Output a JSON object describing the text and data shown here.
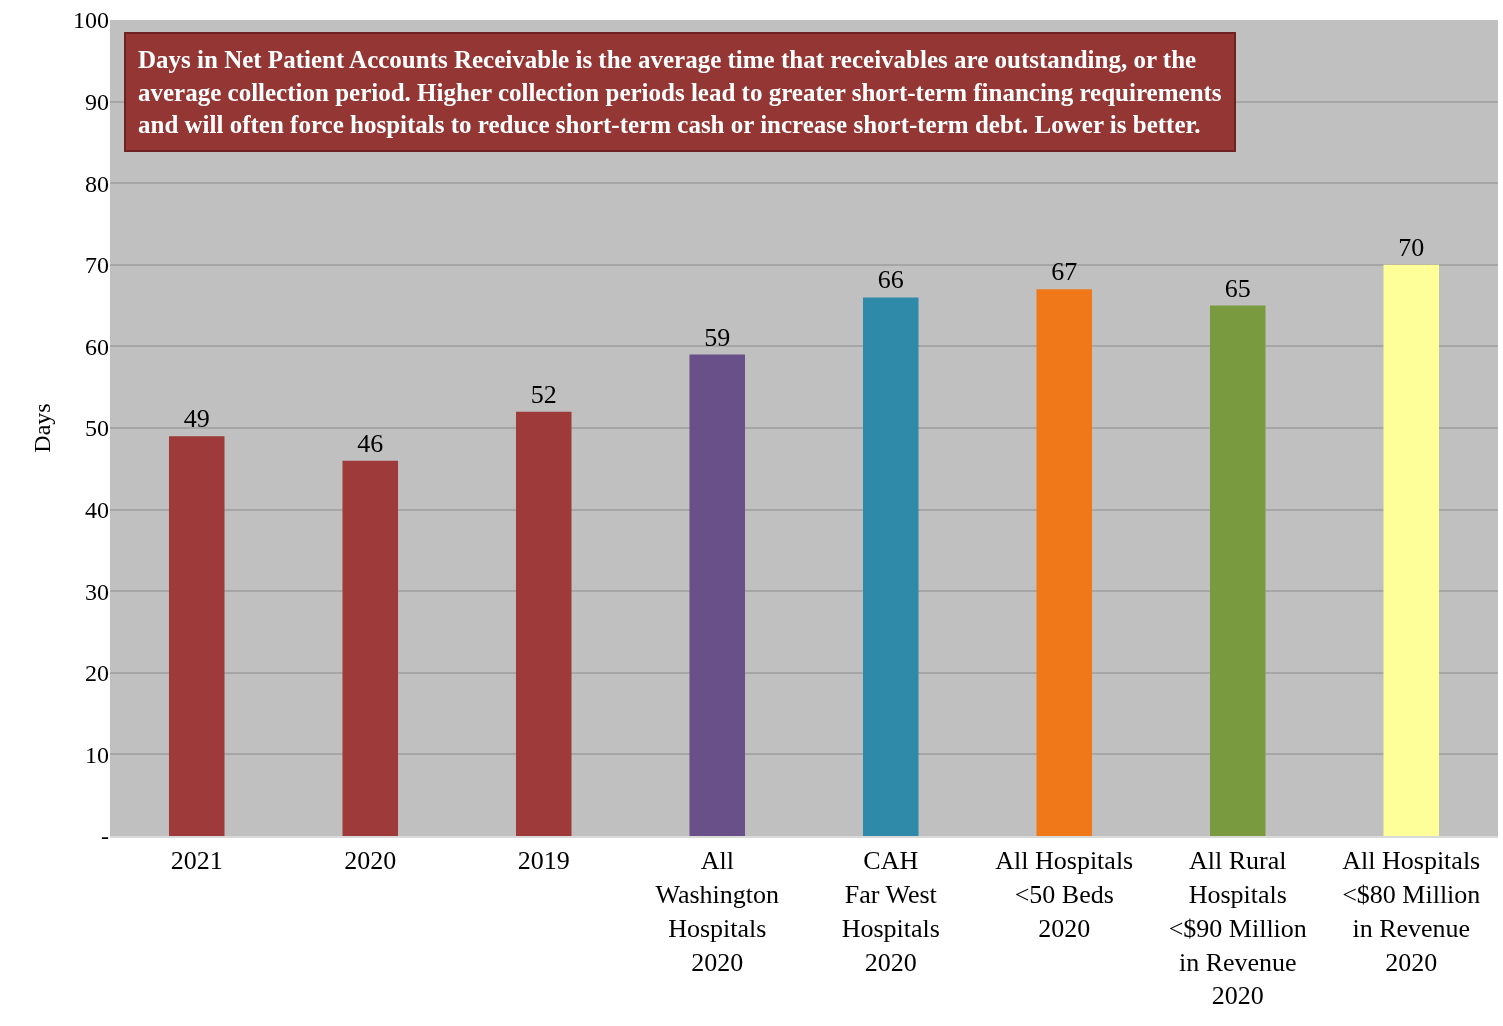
{
  "chart_data": {
    "type": "bar",
    "ylabel": "Days",
    "categories": [
      "2021",
      "2020",
      "2019",
      "All\nWashington\nHospitals\n2020",
      "CAH\nFar West\nHospitals\n2020",
      "All Hospitals\n<50 Beds\n2020",
      "All Rural\nHospitals\n<$90 Million\nin Revenue\n2020",
      "All Hospitals\n<$80 Million\nin Revenue\n2020"
    ],
    "values": [
      49,
      46,
      52,
      59,
      66,
      67,
      65,
      70
    ],
    "colors": [
      "#9e3a3a",
      "#9e3a3a",
      "#9e3a3a",
      "#6a5088",
      "#2e8aa8",
      "#f07818",
      "#7a9a40",
      "#ffff99"
    ],
    "ylim": [
      0,
      100
    ],
    "yticks": [
      {
        "value": 0,
        "label": "-"
      },
      10,
      20,
      30,
      40,
      50,
      60,
      70,
      80,
      90,
      100
    ],
    "grid": "y",
    "data_labels": true,
    "annotations": [
      "Days in Net Patient Accounts Receivable is the average time that receivables are outstanding, or the\naverage collection period. Higher collection periods lead to greater short-term financing requirements\nand will often force hospitals to reduce short-term cash or increase short-term debt. Lower is better."
    ]
  }
}
